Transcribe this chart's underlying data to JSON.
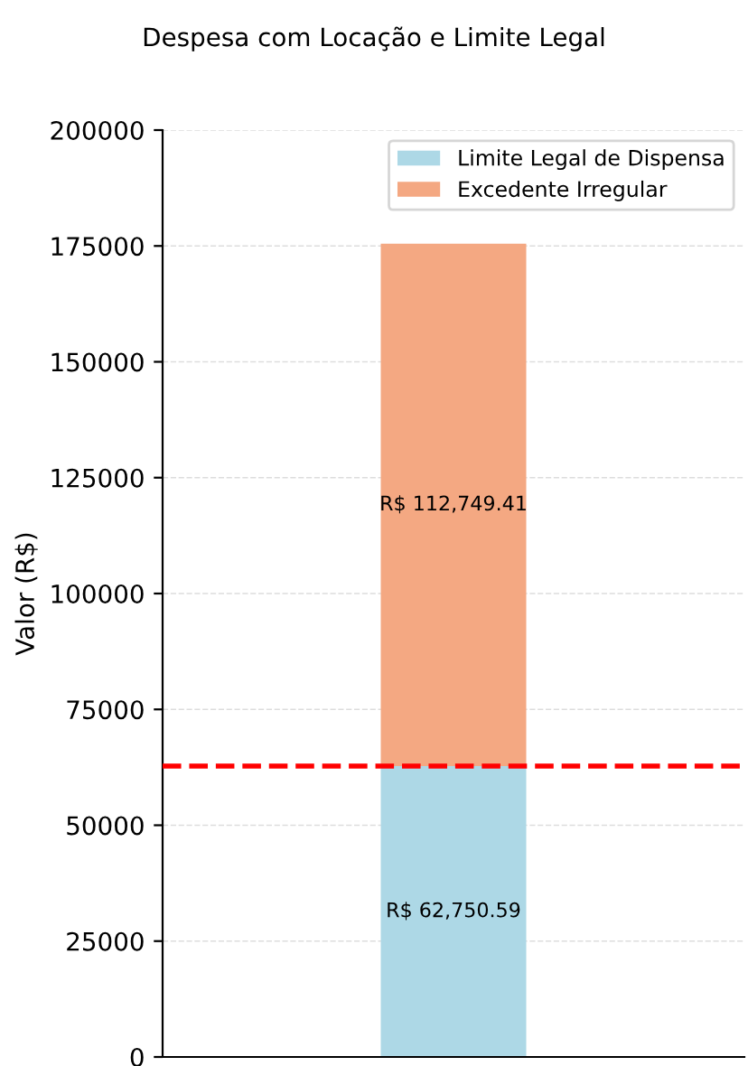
{
  "chart_data": {
    "type": "bar",
    "title": "Despesa com Locação e Limite Legal",
    "ylabel": "Valor (R$)",
    "categories": [
      null
    ],
    "stacked": true,
    "series": [
      {
        "name": "Limite Legal de Dispensa",
        "color": "#add8e6",
        "values": [
          62750.59
        ],
        "value_labels": [
          "R$ 62,750.59"
        ]
      },
      {
        "name": "Excedente Irregular",
        "color": "#f4a882",
        "values": [
          112749.41
        ],
        "value_labels": [
          "R$ 112,749.41"
        ]
      }
    ],
    "ylim": [
      0,
      200000
    ],
    "yticks": [
      0,
      25000,
      50000,
      75000,
      100000,
      125000,
      150000,
      175000,
      200000
    ],
    "ref_lines": [
      {
        "axis": "y",
        "value": 62750.59,
        "color": "#ff0000",
        "line_style": "dashed"
      }
    ],
    "grid": "y",
    "legend": "top right",
    "tick_labels": "y"
  }
}
